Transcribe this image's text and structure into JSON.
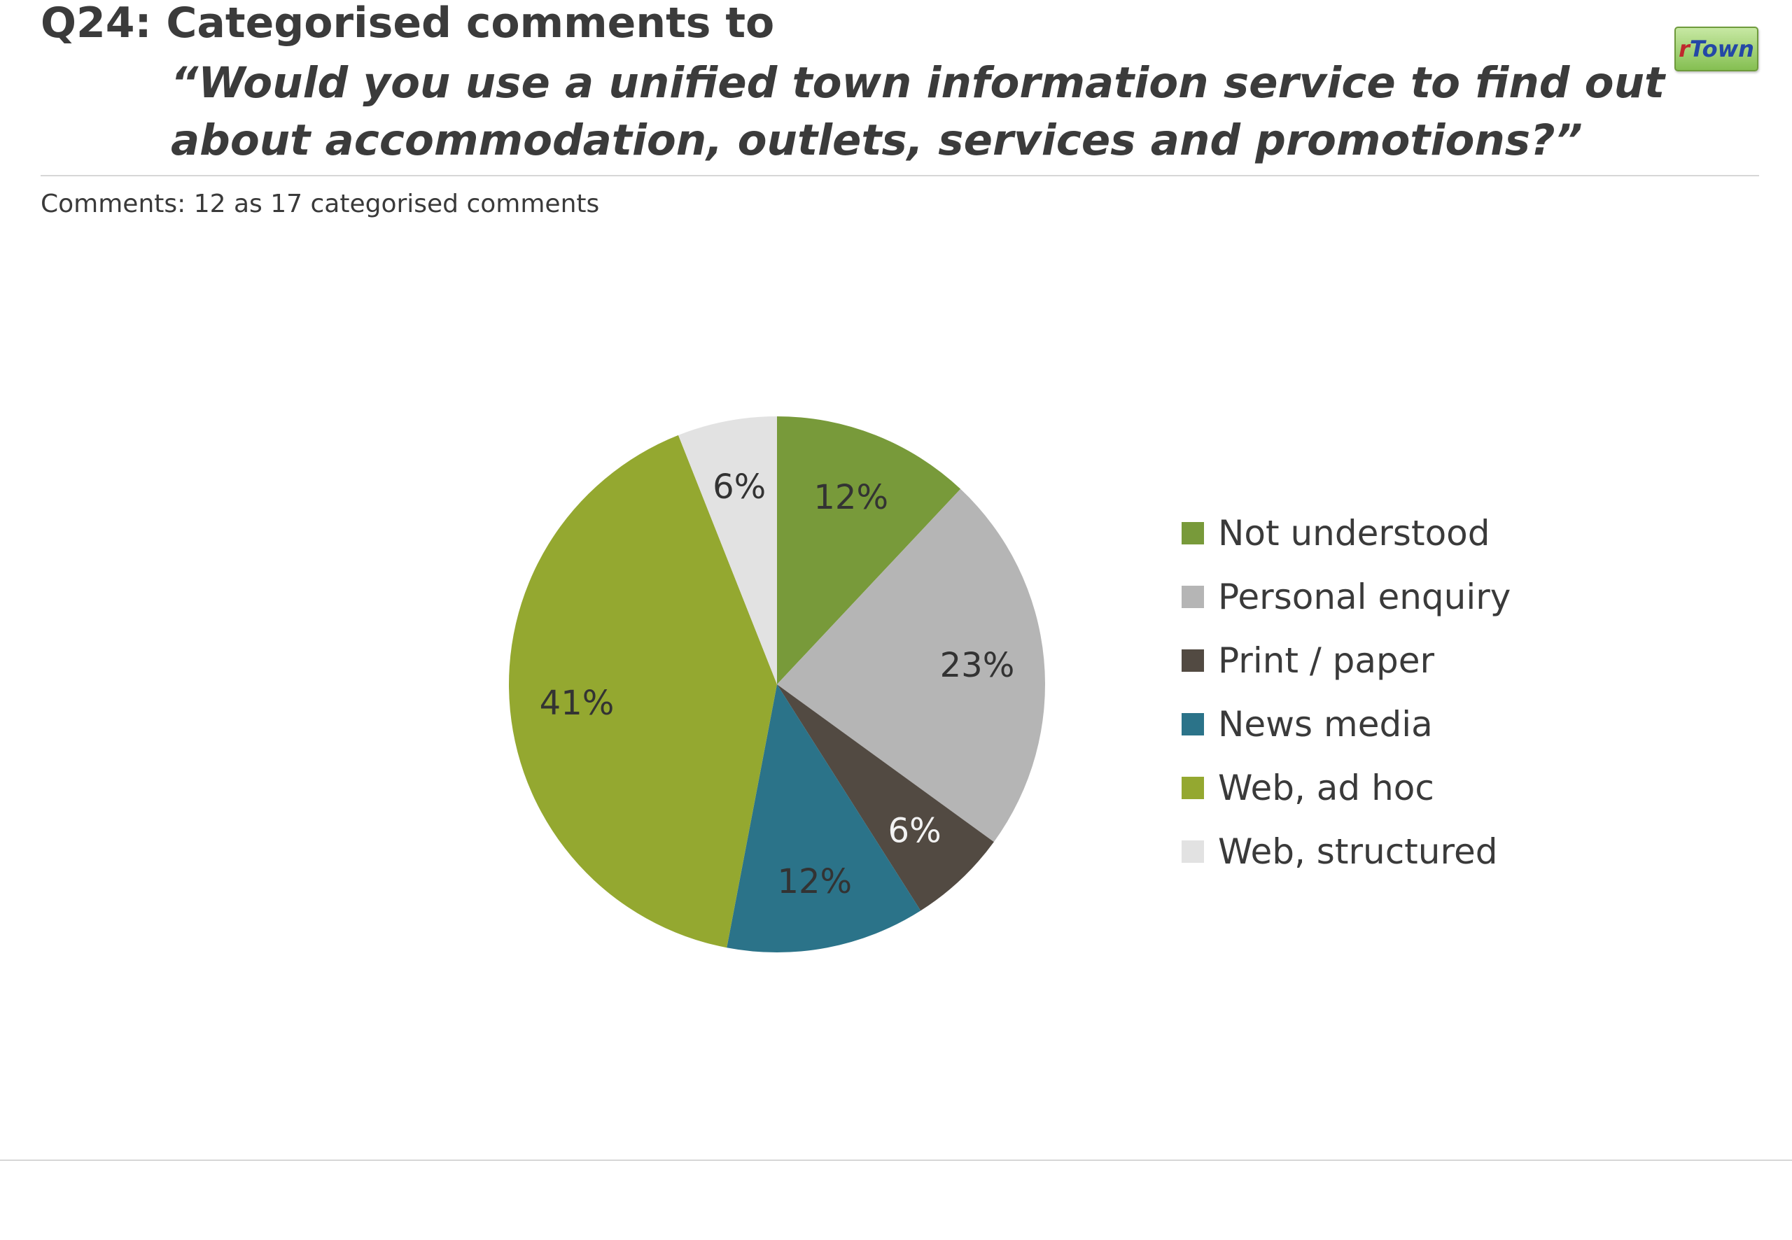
{
  "header": {
    "title": "Q24: Categorised comments to",
    "question_line1": "“Would you use a unified town information service to find out",
    "question_line2": "about accommodation, outlets, services and promotions?”",
    "logo_prefix": "r",
    "logo_rest": "Town",
    "comments_note": "Comments: 12 as 17 categorised comments"
  },
  "chart_data": {
    "type": "pie",
    "title": "",
    "categories": [
      "Not understood",
      "Personal enquiry",
      "Print / paper",
      "News media",
      "Web, ad hoc",
      "Web, structured"
    ],
    "values": [
      12,
      23,
      6,
      12,
      41,
      6
    ],
    "data_labels": [
      "12%",
      "23%",
      "6%",
      "12%",
      "41%",
      "6%"
    ],
    "colors": [
      "#789a3a",
      "#b5b5b5",
      "#524a42",
      "#2b7389",
      "#94a830",
      "#e2e2e2"
    ],
    "label_colors": [
      "#333333",
      "#333333",
      "#f2f2f2",
      "#333333",
      "#333333",
      "#333333"
    ],
    "start": "12 o'clock",
    "direction": "clockwise",
    "legend_position": "right"
  }
}
